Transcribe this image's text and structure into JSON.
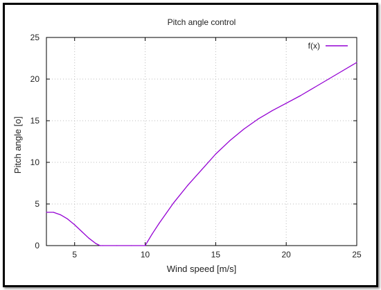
{
  "chart_data": {
    "type": "line",
    "title": "Pitch angle control",
    "xlabel": "Wind speed [m/s]",
    "ylabel": "Pitch angle [o]",
    "xlim": [
      3,
      25
    ],
    "ylim": [
      0,
      25
    ],
    "x_ticks": [
      5,
      10,
      15,
      20,
      25
    ],
    "y_ticks": [
      0,
      5,
      10,
      15,
      20,
      25
    ],
    "grid": true,
    "legend_position": "top-right",
    "series": [
      {
        "name": "f(x)",
        "color": "#9400d3",
        "x": [
          3,
          3.5,
          4,
          4.5,
          5,
          5.5,
          6,
          6.5,
          6.8,
          7,
          8,
          9,
          10,
          10.5,
          11,
          11.5,
          12,
          13,
          14,
          15,
          16,
          17,
          18,
          19,
          20,
          21,
          22,
          23,
          24,
          25
        ],
        "y": [
          4.0,
          4.0,
          3.7,
          3.2,
          2.5,
          1.7,
          0.9,
          0.25,
          0,
          0,
          0,
          0,
          0,
          1.4,
          2.7,
          3.9,
          5.1,
          7.2,
          9.1,
          11.0,
          12.6,
          14.0,
          15.2,
          16.2,
          17.1,
          18.0,
          19.0,
          20.0,
          21.0,
          22.0
        ]
      }
    ]
  }
}
